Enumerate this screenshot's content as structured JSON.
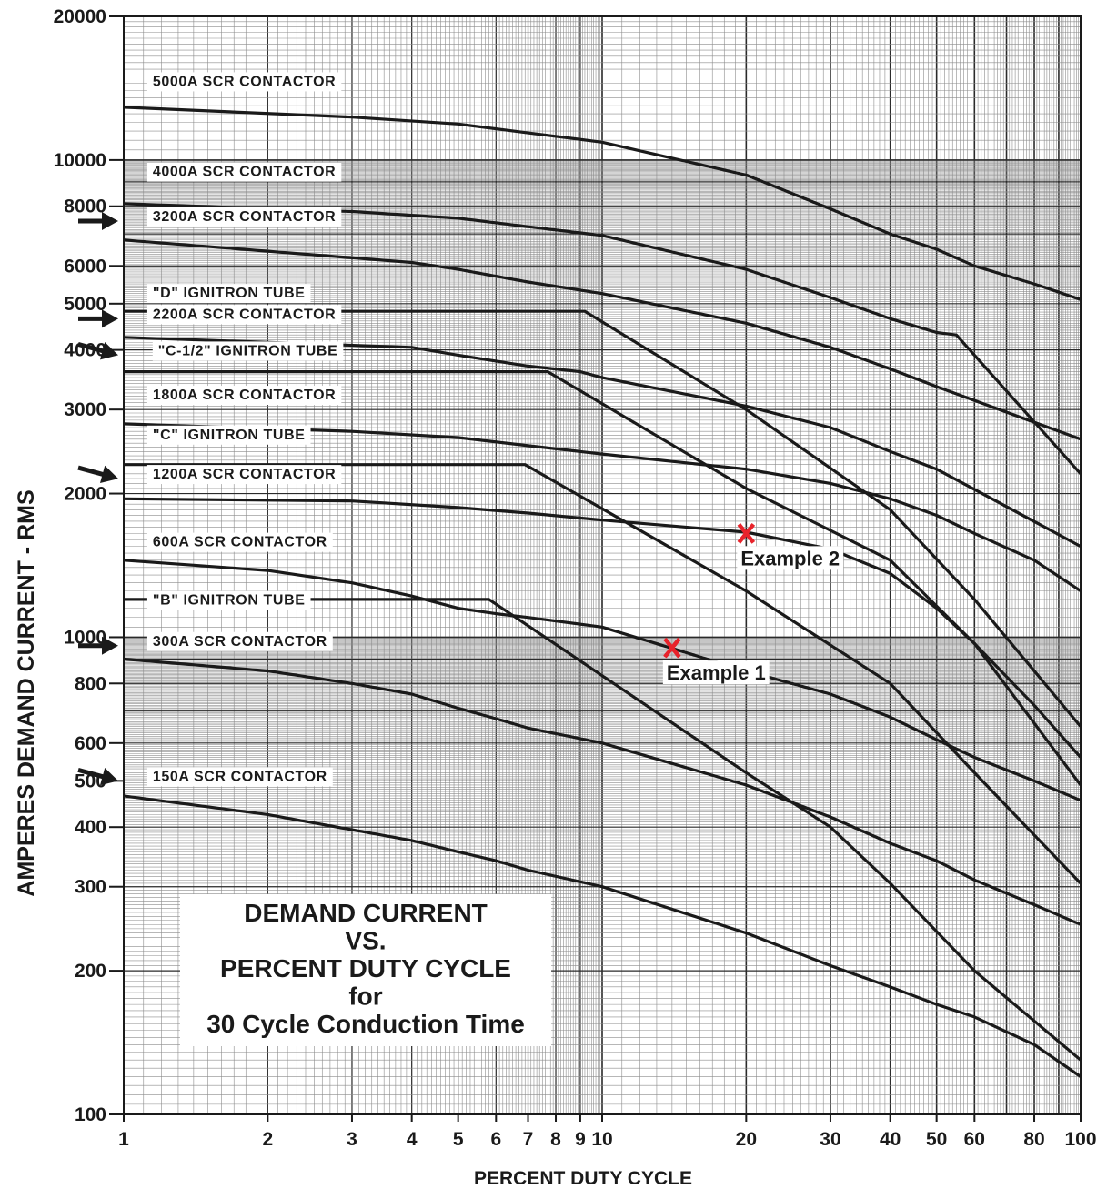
{
  "chart_data": {
    "type": "line",
    "title": [
      "DEMAND CURRENT",
      "VS.",
      "PERCENT DUTY CYCLE",
      "for",
      "30 Cycle Conduction Time"
    ],
    "xlabel": "PERCENT DUTY CYCLE",
    "ylabel": "AMPERES DEMAND CURRENT - RMS",
    "xscale": "log",
    "yscale": "log",
    "xlim": [
      1,
      100
    ],
    "ylim": [
      100,
      20000
    ],
    "grid": true,
    "x_ticks": [
      {
        "value": 1,
        "label": "1"
      },
      {
        "value": 2,
        "label": "2"
      },
      {
        "value": 3,
        "label": "3"
      },
      {
        "value": 4,
        "label": "4"
      },
      {
        "value": 5,
        "label": "5"
      },
      {
        "value": 6,
        "label": "6"
      },
      {
        "value": 7,
        "label": "7"
      },
      {
        "value": 8,
        "label": "8"
      },
      {
        "value": 9,
        "label": "9"
      },
      {
        "value": 10,
        "label": "10"
      },
      {
        "value": 20,
        "label": "20"
      },
      {
        "value": 30,
        "label": "30"
      },
      {
        "value": 40,
        "label": "40"
      },
      {
        "value": 50,
        "label": "50"
      },
      {
        "value": 60,
        "label": "60"
      },
      {
        "value": 80,
        "label": "80"
      },
      {
        "value": 100,
        "label": "100"
      }
    ],
    "y_ticks": [
      {
        "value": 20000,
        "label": "20000"
      },
      {
        "value": 10000,
        "label": "10000"
      },
      {
        "value": 8000,
        "label": "8000"
      },
      {
        "value": 6000,
        "label": "6000"
      },
      {
        "value": 5000,
        "label": "5000"
      },
      {
        "value": 4000,
        "label": "4000"
      },
      {
        "value": 3000,
        "label": "3000"
      },
      {
        "value": 2000,
        "label": "2000"
      },
      {
        "value": 1000,
        "label": "1000"
      },
      {
        "value": 800,
        "label": "800"
      },
      {
        "value": 600,
        "label": "600"
      },
      {
        "value": 500,
        "label": "500"
      },
      {
        "value": 400,
        "label": "400"
      },
      {
        "value": 300,
        "label": "300"
      },
      {
        "value": 200,
        "label": "200"
      },
      {
        "value": 100,
        "label": "100"
      }
    ],
    "series": [
      {
        "name": "5000A SCR CONTACTOR",
        "label_at": [
          1.15,
          14300
        ],
        "arrow": false,
        "x": [
          1,
          3,
          5,
          7,
          10,
          20,
          30,
          40,
          50,
          60,
          80,
          100
        ],
        "y": [
          12900,
          12300,
          11900,
          11400,
          10900,
          9300,
          7900,
          7000,
          6500,
          6000,
          5500,
          5100
        ]
      },
      {
        "name": "4000A SCR CONTACTOR",
        "label_at": [
          1.15,
          9250
        ],
        "arrow": false,
        "x": [
          1,
          3,
          5,
          7,
          10,
          20,
          30,
          40,
          50,
          55,
          100
        ],
        "y": [
          8100,
          7800,
          7550,
          7250,
          6950,
          5900,
          5150,
          4650,
          4350,
          4300,
          2200
        ]
      },
      {
        "name": "3200A SCR CONTACTOR",
        "label_at": [
          1.15,
          7450
        ],
        "arrow": true,
        "x": [
          1,
          4,
          5,
          7,
          10,
          20,
          30,
          40,
          50,
          100
        ],
        "y": [
          6800,
          6100,
          5900,
          5550,
          5250,
          4550,
          4050,
          3650,
          3350,
          2600
        ]
      },
      {
        "name": "\"D\" IGNITRON TUBE",
        "label_at": [
          1.15,
          5150
        ],
        "arrow": false,
        "x": [
          1,
          9.2,
          20,
          40,
          60,
          100
        ],
        "y": [
          4820,
          4820,
          3000,
          1850,
          1200,
          650
        ]
      },
      {
        "name": "2200A SCR CONTACTOR",
        "label_at": [
          1.15,
          4650
        ],
        "arrow": true,
        "x": [
          1,
          4,
          5,
          7,
          9,
          10,
          20,
          30,
          40,
          50,
          100
        ],
        "y": [
          4250,
          4050,
          3900,
          3700,
          3600,
          3500,
          3050,
          2750,
          2450,
          2250,
          1550
        ]
      },
      {
        "name": "\"C-1/2\" IGNITRON TUBE",
        "label_at": [
          1.18,
          3900
        ],
        "arrow": true,
        "x": [
          1,
          7.7,
          20,
          40,
          60,
          100
        ],
        "y": [
          3600,
          3600,
          2050,
          1450,
          970,
          490
        ]
      },
      {
        "name": "1800A SCR CONTACTOR",
        "label_at": [
          1.15,
          3150
        ],
        "arrow": false,
        "x": [
          1,
          3,
          5,
          7,
          10,
          20,
          30,
          40,
          50,
          60,
          80,
          100
        ],
        "y": [
          2800,
          2700,
          2620,
          2520,
          2420,
          2250,
          2100,
          1950,
          1800,
          1650,
          1450,
          1250
        ]
      },
      {
        "name": "\"C\" IGNITRON TUBE",
        "label_at": [
          1.15,
          2600
        ],
        "arrow": false,
        "x": [
          1,
          6.9,
          20,
          40,
          60,
          100
        ],
        "y": [
          2300,
          2300,
          1250,
          800,
          520,
          305
        ]
      },
      {
        "name": "1200A SCR CONTACTOR",
        "label_at": [
          1.15,
          2150
        ],
        "arrow": true,
        "x": [
          1,
          3,
          5,
          7,
          10,
          20,
          30,
          40,
          50,
          60,
          80,
          100
        ],
        "y": [
          1950,
          1930,
          1870,
          1820,
          1760,
          1660,
          1530,
          1360,
          1150,
          970,
          720,
          560
        ]
      },
      {
        "name": "600A SCR CONTACTOR",
        "label_at": [
          1.15,
          1550
        ],
        "arrow": false,
        "x": [
          1,
          2,
          3,
          4,
          5,
          6,
          7,
          10,
          20,
          30,
          40,
          50,
          60,
          80,
          100
        ],
        "y": [
          1450,
          1380,
          1300,
          1220,
          1150,
          1120,
          1100,
          1050,
          850,
          760,
          680,
          610,
          560,
          500,
          455
        ]
      },
      {
        "name": "\"B\" IGNITRON TUBE",
        "label_at": [
          1.15,
          1170
        ],
        "arrow": false,
        "x": [
          1,
          5.8,
          20,
          30,
          40,
          60,
          100
        ],
        "y": [
          1200,
          1200,
          520,
          400,
          305,
          200,
          130
        ]
      },
      {
        "name": "300A SCR CONTACTOR",
        "label_at": [
          1.15,
          960
        ],
        "arrow": true,
        "x": [
          1,
          2,
          3,
          4,
          5,
          6,
          7,
          10,
          20,
          30,
          40,
          50,
          60,
          80,
          100
        ],
        "y": [
          900,
          850,
          800,
          760,
          710,
          675,
          645,
          600,
          490,
          420,
          370,
          340,
          310,
          275,
          250
        ]
      },
      {
        "name": "150A SCR CONTACTOR",
        "label_at": [
          1.15,
          500
        ],
        "arrow": true,
        "x": [
          1,
          2,
          3,
          4,
          5,
          6,
          7,
          10,
          20,
          30,
          40,
          50,
          60,
          80,
          100
        ],
        "y": [
          465,
          425,
          395,
          375,
          355,
          340,
          325,
          300,
          240,
          205,
          185,
          170,
          160,
          140,
          120
        ]
      }
    ],
    "examples": [
      {
        "label": "Example 1",
        "x": 14,
        "y": 950,
        "marker": "X",
        "color": "#e8232b"
      },
      {
        "label": "Example 2",
        "x": 20,
        "y": 1650,
        "marker": "X",
        "color": "#e8232b"
      }
    ]
  }
}
